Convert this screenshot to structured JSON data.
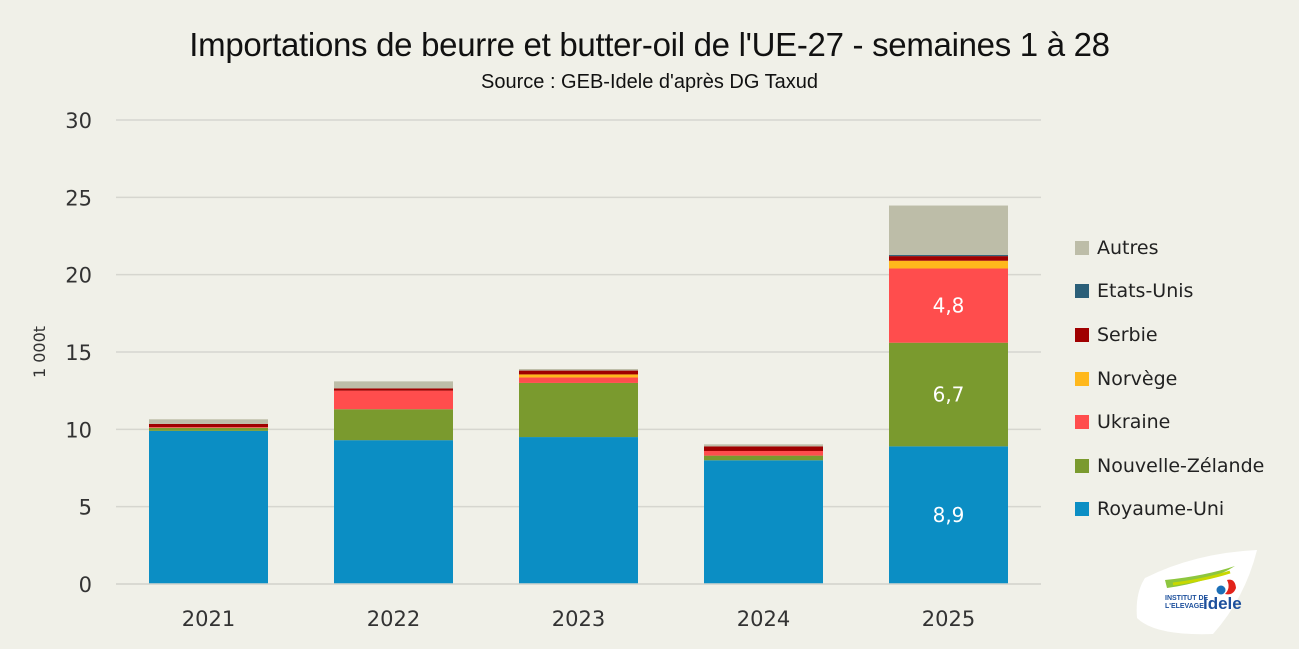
{
  "chart_data": {
    "type": "bar",
    "stacked": true,
    "title": "Importations de beurre et butter-oil de l'UE-27 - semaines 1 à 28",
    "subtitle": "Source : GEB-Idele d'après DG Taxud",
    "xlabel": "",
    "ylabel": "1 000t",
    "ylim": [
      0,
      30
    ],
    "yticks": [
      0,
      5,
      10,
      15,
      20,
      25,
      30
    ],
    "ytick_labels": [
      "0",
      "5",
      "10",
      "15",
      "20",
      "25",
      "30"
    ],
    "grid": true,
    "legend_position": "right",
    "categories": [
      "2021",
      "2022",
      "2023",
      "2024",
      "2025"
    ],
    "series": [
      {
        "name": "Royaume-Uni",
        "color": "#0b8ec4",
        "values": [
          9.9,
          9.3,
          9.5,
          8.0,
          8.9
        ],
        "labels": [
          "",
          "",
          "",
          "",
          "8,9"
        ]
      },
      {
        "name": "Nouvelle-Zélande",
        "color": "#7a9a2e",
        "values": [
          0.2,
          2.0,
          3.5,
          0.3,
          6.7
        ],
        "labels": [
          "",
          "",
          "",
          "",
          "6,7"
        ]
      },
      {
        "name": "Ukraine",
        "color": "#ff4d4d",
        "values": [
          0.05,
          1.2,
          0.35,
          0.3,
          4.8
        ],
        "labels": [
          "",
          "",
          "",
          "",
          "4,8"
        ]
      },
      {
        "name": "Norvège",
        "color": "#ffb81c",
        "values": [
          0,
          0,
          0.2,
          0,
          0.5
        ],
        "labels": [
          "",
          "",
          "",
          "",
          ""
        ]
      },
      {
        "name": "Serbie",
        "color": "#a00000",
        "values": [
          0.2,
          0.15,
          0.25,
          0.3,
          0.3
        ],
        "labels": [
          "",
          "",
          "",
          "",
          ""
        ]
      },
      {
        "name": "Etats-Unis",
        "color": "#2b5f78",
        "values": [
          0,
          0,
          0,
          0,
          0.07
        ],
        "labels": [
          "",
          "",
          "",
          "",
          ""
        ]
      },
      {
        "name": "Autres",
        "color": "#bdbda8",
        "values": [
          0.3,
          0.45,
          0.1,
          0.13,
          3.2
        ],
        "labels": [
          "",
          "",
          "",
          "",
          ""
        ]
      }
    ]
  },
  "logo": {
    "line1": "INSTITUT DE",
    "line2": "L'ELEVAGE",
    "brand": "idele"
  }
}
